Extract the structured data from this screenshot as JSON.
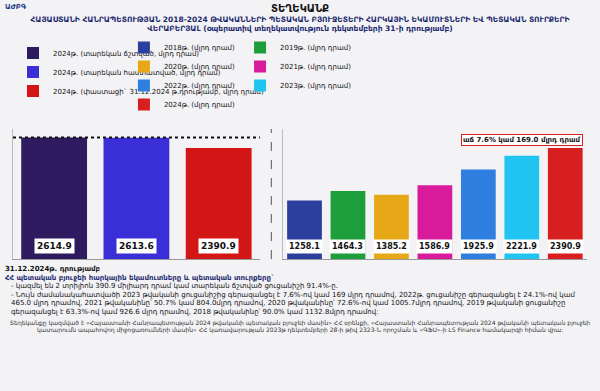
{
  "header": {
    "logo_text": "ԱԺԲԳ",
    "kind": "ՏԵՂԵԿԱՆՔ",
    "title": "ՀԱՅԱՍՏԱՆԻ ՀԱՆՐԱՊԵՏՈՒԹՅԱՆ 2018-2024 ԹՎԱԿԱՆՆԵՐԻ ՊԵՏԱԿԱՆ ԲՅՈՒՋԵՏԵՐԻ ՀԱՐԿԱՅԻՆ ԵԿԱՄՈՒՏՆԵՐԻ ԵՎ ՊԵՏԱԿԱՆ ՏՈՒՐՔԵՐԻ ՎԵՐԱԲԵՐՅԱԼ (օպերատիվ տեղեկատվություն դեկտեմբերի 31-ի դրությամբ)"
  },
  "chart_data": [
    {
      "type": "bar",
      "categories": [
        null,
        null,
        null
      ],
      "series": [
        {
          "name": "2024թ. (տարեկան ճշտված, մլրդ դրամ)",
          "color": "#2e1a5f",
          "values": [
            2614.9,
            null,
            null
          ]
        },
        {
          "name": "2024թ. (տարեկան հաստատված, մլրդ դրամ)",
          "color": "#3a2fd6",
          "values": [
            null,
            2613.6,
            null
          ]
        },
        {
          "name": "2024թ. (փաստացի` 31.12.2024 թ.դրությամբ, մլրդ դրամ)",
          "color": "#d41515",
          "values": [
            null,
            null,
            2390.9
          ]
        }
      ],
      "ylim": [
        0,
        2800
      ],
      "tick_labels": false,
      "data_labels": true,
      "legend": "top"
    },
    {
      "type": "bar",
      "categories": [
        null,
        null,
        null,
        null,
        null,
        null,
        null
      ],
      "series": [
        {
          "name": "2018թ. (մլրդ դրամ)",
          "color": "#2c3e9e",
          "values": [
            1258.1,
            null,
            null,
            null,
            null,
            null,
            null
          ]
        },
        {
          "name": "2019թ. (մլրդ դրամ)",
          "color": "#1e9e3a",
          "values": [
            null,
            1464.3,
            null,
            null,
            null,
            null,
            null
          ]
        },
        {
          "name": "2020թ. (մլրդ դրամ)",
          "color": "#e6a817",
          "values": [
            null,
            null,
            1385.2,
            null,
            null,
            null,
            null
          ]
        },
        {
          "name": "2021թ. (մլրդ դրամ)",
          "color": "#d81b9b",
          "values": [
            null,
            null,
            null,
            1586.9,
            null,
            null,
            null
          ]
        },
        {
          "name": "2022թ. (մլրդ դրամ)",
          "color": "#2f7fe0",
          "values": [
            null,
            null,
            null,
            null,
            1925.9,
            null,
            null
          ]
        },
        {
          "name": "2023թ. (մլրդ դրամ)",
          "color": "#21c4f0",
          "values": [
            null,
            null,
            null,
            null,
            null,
            2221.9,
            null
          ]
        },
        {
          "name": "2024թ. (մլրդ դրամ)",
          "color": "#d81f1f",
          "values": [
            null,
            null,
            null,
            null,
            null,
            null,
            2390.9
          ]
        }
      ],
      "annotations": [
        {
          "text": "աճ 7.6% կամ 169.0 մլրդ դրամ",
          "x": 6
        }
      ],
      "ylim": [
        0,
        2800
      ],
      "tick_labels": false,
      "data_labels": true,
      "legend": "top"
    }
  ],
  "footer": {
    "date": "31.12.2024թ. դրությամբ",
    "heading": "ՀՀ պետական բյուջեի հարկային եկամուտները և պետական տուրքերը`",
    "bullets": [
      "- կազմել են 2 տրիլիոն 390.9 միլիարդ դրամ կամ տարեկան ճշտված ցուցանիշի 91.4%-ը.",
      "- Նույն ժամանակահատվածի 2023 թվականի ցուցանիշից գերազանցել է 7.6%-ով կամ 169 մլրդ դրամով, 2022թ. ցուցանիշը գերազանցել է 24.1%-ով կամ 465.0 մլրդ դրամով, 2021 թվականինը՝ 50.7% կամ 804.0մլրդ դրամով, 2020 թվականինը՝ 72.6%-ով կամ 1005.7մլրդ դրամով, 2019 թվականի ցուցանիշը գերազանցել է 63.3%-ով կամ 926.6 մլրդ դրամով, 2018 թվականինը՝ 90.0% կամ 1132.8մլրդ դրամով:"
    ],
    "source": "Տեղեկանքը կազմված է «Հայաստանի Հանրապետության 2024 թվականի պետական բյուջեի մասին» ՀՀ օրենքի, «Հայաստանի Հանրապետության 2024 թվականի պետական բյուջեի կատարումն ապահովող միջոցառումների մասին» ՀՀ կառավարության 2023թ դեկտեմբերի 28-ի թիվ 2323-Ն որոշման և «ԳՖՍ»-ի LS Finance համակարգի հիման վրա:"
  }
}
